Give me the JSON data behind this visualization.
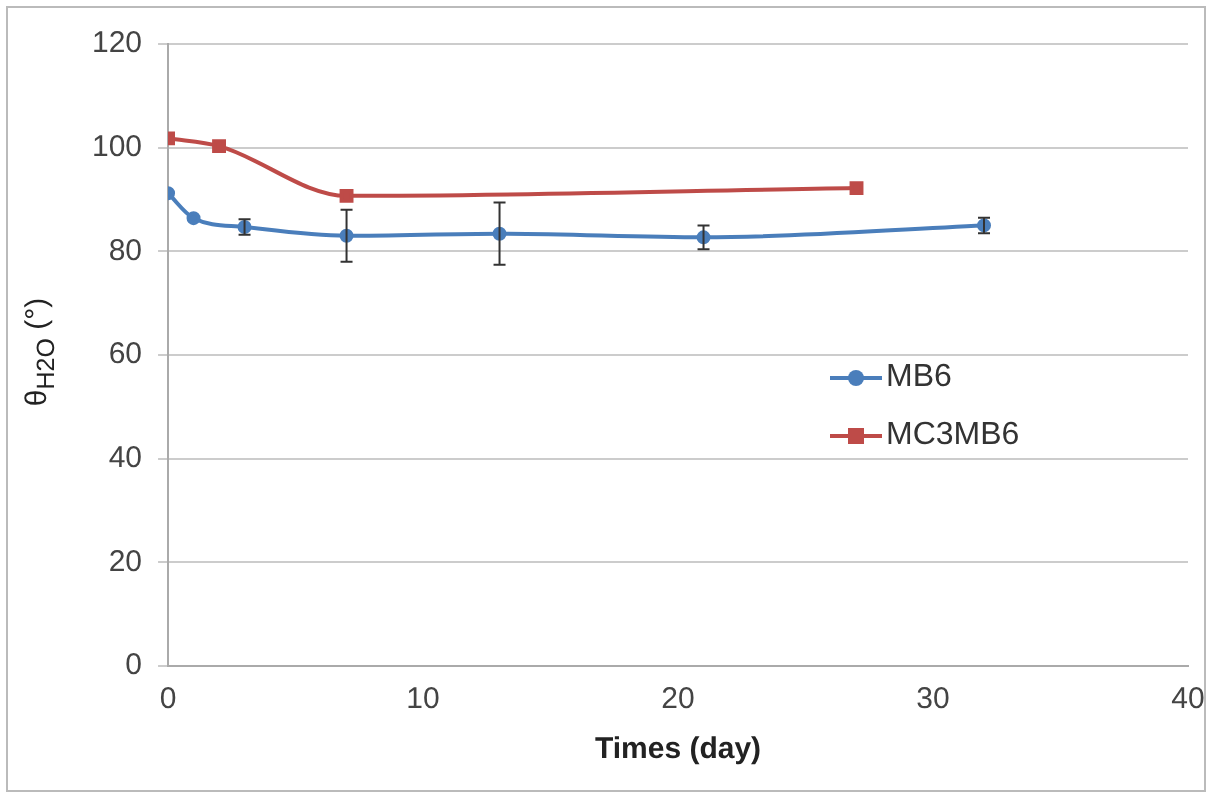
{
  "chart_data": {
    "type": "line",
    "xlabel": "Times (day)",
    "ylabel": "θ$_{H2O}$ (°)",
    "xlim": [
      0,
      40
    ],
    "xticks": [
      0,
      10,
      20,
      30,
      40
    ],
    "ylim": [
      0,
      120
    ],
    "yticks": [
      0,
      20,
      40,
      60,
      80,
      100,
      120
    ],
    "grid": "y",
    "legend": "right",
    "series": [
      {
        "name": "MB6",
        "color": "#4a7ebb",
        "marker": "circle",
        "x": [
          0,
          1,
          3,
          7,
          13,
          21,
          32
        ],
        "values": [
          91.2,
          86.4,
          84.7,
          83,
          83.4,
          82.7,
          85
        ],
        "errors": [
          null,
          null,
          1.5,
          5,
          6,
          2.3,
          1.5
        ]
      },
      {
        "name": "MC3MB6",
        "color": "#be4b48",
        "marker": "square",
        "x": [
          0,
          2,
          7,
          27
        ],
        "values": [
          101.8,
          100.3,
          90.7,
          92.2
        ]
      }
    ]
  }
}
